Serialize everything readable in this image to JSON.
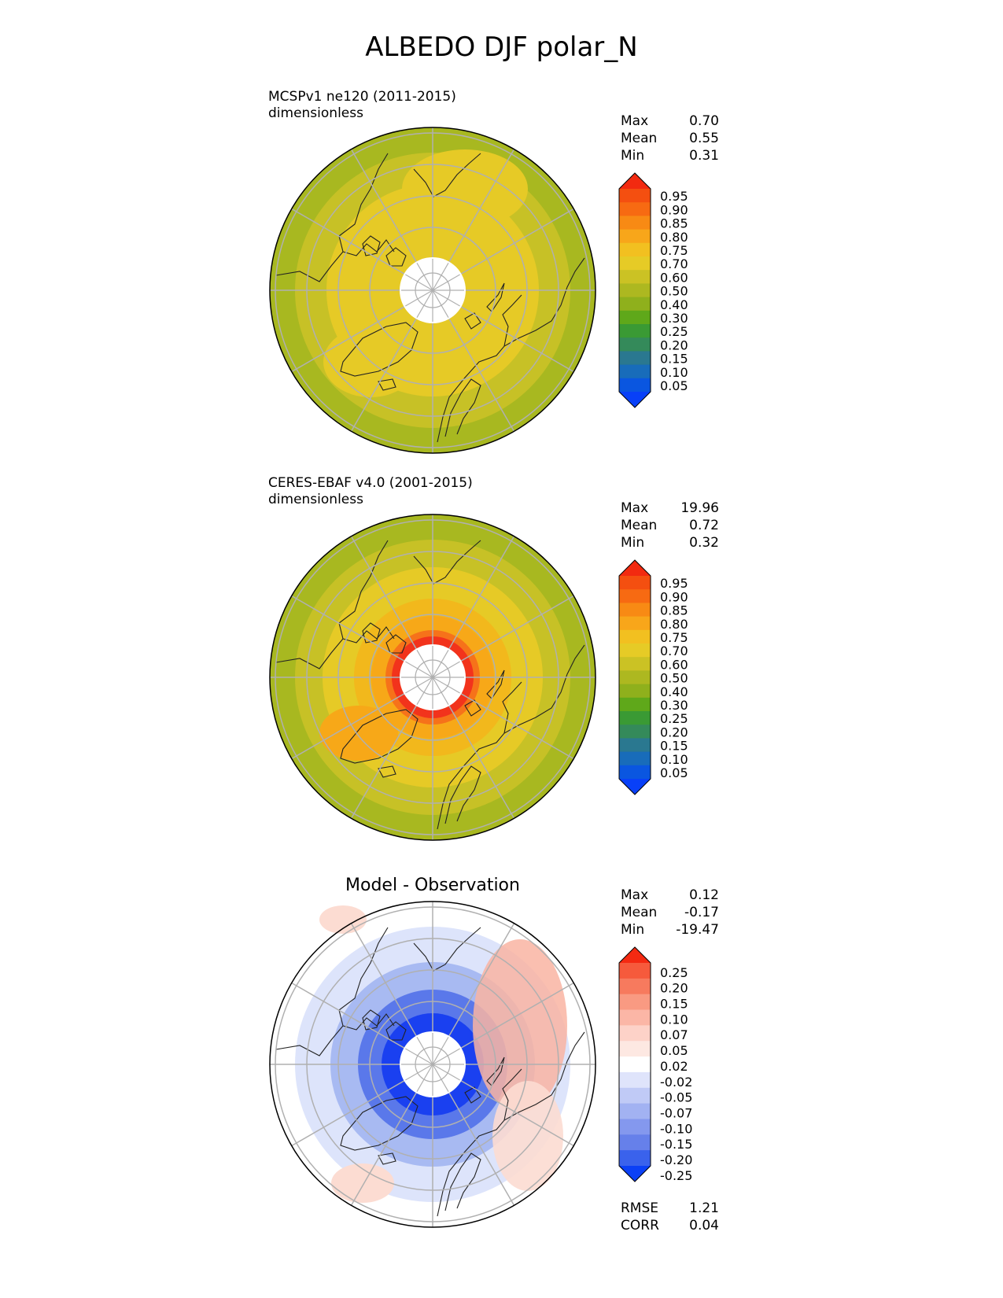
{
  "title": "ALBEDO DJF polar_N",
  "panels": [
    {
      "title_line1": "MCSPv1 ne120 (2011-2015)",
      "title_line2": "dimensionless",
      "stats": [
        {
          "label": "Max",
          "value": "0.70"
        },
        {
          "label": "Mean",
          "value": "0.55"
        },
        {
          "label": "Min",
          "value": "0.31"
        }
      ],
      "colorbar": {
        "labels": [
          "0.95",
          "0.90",
          "0.85",
          "0.80",
          "0.75",
          "0.70",
          "0.60",
          "0.50",
          "0.40",
          "0.30",
          "0.25",
          "0.20",
          "0.15",
          "0.10",
          "0.05"
        ],
        "colors": [
          "#f22a10",
          "#f44f10",
          "#f76a12",
          "#f88a14",
          "#f8a61a",
          "#f2c020",
          "#e6cb26",
          "#cbc224",
          "#adb820",
          "#8fb01c",
          "#5fa81a",
          "#3a9a34",
          "#348a5a",
          "#2a7890",
          "#186cba",
          "#0a56e0",
          "#0840f8"
        ]
      }
    },
    {
      "title_line1": "CERES-EBAF v4.0 (2001-2015)",
      "title_line2": "dimensionless",
      "stats": [
        {
          "label": "Max",
          "value": "19.96"
        },
        {
          "label": "Mean",
          "value": "0.72"
        },
        {
          "label": "Min",
          "value": "0.32"
        }
      ]
    },
    {
      "center_title": "Model - Observation",
      "stats": [
        {
          "label": "Max",
          "value": "0.12"
        },
        {
          "label": "Mean",
          "value": "-0.17"
        },
        {
          "label": "Min",
          "value": "-19.47"
        }
      ],
      "colorbar": {
        "labels": [
          "0.25",
          "0.20",
          "0.15",
          "0.10",
          "0.07",
          "0.05",
          "0.02",
          "-0.02",
          "-0.05",
          "-0.07",
          "-0.10",
          "-0.15",
          "-0.20",
          "-0.25"
        ],
        "colors": [
          "#f42a12",
          "#f65a3c",
          "#f77a5e",
          "#f99a82",
          "#fbb6a6",
          "#fdd2c8",
          "#fde8e2",
          "#ffffff",
          "#dfe4fb",
          "#c0caf6",
          "#a2b2f2",
          "#8498ee",
          "#6680ea",
          "#3a62ec",
          "#0b40f6"
        ]
      },
      "extra_stats": [
        {
          "label": "RMSE",
          "value": "1.21"
        },
        {
          "label": "CORR",
          "value": "0.04"
        }
      ]
    }
  ],
  "map_colors": {
    "outer": "#a8b820",
    "mid": "#c7c126",
    "inner": "#e6ca26",
    "orange": "#f7a818",
    "red": "#f2331c",
    "diff_blue_dark": "#1a40f0",
    "diff_blue": "#5a78ea",
    "diff_blue_light": "#a8baf2",
    "diff_blue_pale": "#dde4fb",
    "diff_red_light": "#f9b4a2",
    "diff_red_pale": "#fcdcd2",
    "grid": "#b0b0b0",
    "coast": "#222222"
  }
}
